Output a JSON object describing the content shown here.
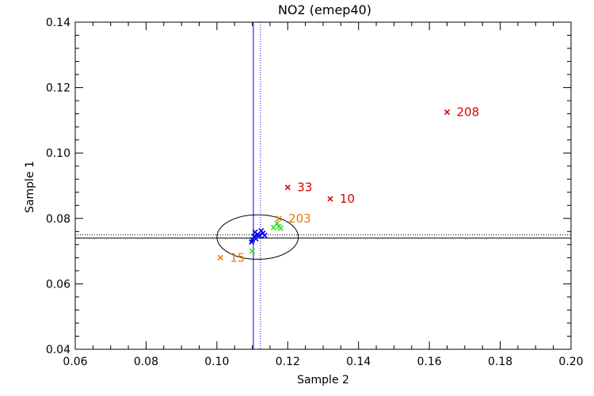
{
  "chart_data": {
    "type": "scatter",
    "title": "NO2 (emep40)",
    "xlabel": "Sample 2",
    "ylabel": "Sample 1",
    "xlim": [
      0.06,
      0.2
    ],
    "ylim": [
      0.04,
      0.14
    ],
    "x_ticks": [
      "0.06",
      "0.08",
      "0.10",
      "0.12",
      "0.14",
      "0.16",
      "0.18",
      "0.20"
    ],
    "y_ticks": [
      "0.04",
      "0.06",
      "0.08",
      "0.10",
      "0.12",
      "0.14"
    ],
    "grid": false,
    "colors": {
      "red": "#dd0000",
      "orange": "#ee7700",
      "green": "#33dd33",
      "blue": "#0000ee",
      "frame": "#000000"
    },
    "series": [
      {
        "color": "red",
        "points": [
          {
            "x": 0.165,
            "y": 0.1125,
            "label": "208"
          },
          {
            "x": 0.12,
            "y": 0.0895,
            "label": "33"
          },
          {
            "x": 0.132,
            "y": 0.086,
            "label": "10"
          }
        ]
      },
      {
        "color": "orange",
        "points": [
          {
            "x": 0.1175,
            "y": 0.08,
            "label": "203"
          },
          {
            "x": 0.101,
            "y": 0.068,
            "label": "15"
          }
        ]
      },
      {
        "color": "green",
        "points": [
          {
            "x": 0.1175,
            "y": 0.0775
          },
          {
            "x": 0.116,
            "y": 0.0772
          },
          {
            "x": 0.118,
            "y": 0.077
          },
          {
            "x": 0.117,
            "y": 0.0785
          },
          {
            "x": 0.11,
            "y": 0.07
          }
        ]
      },
      {
        "color": "blue",
        "points": [
          {
            "x": 0.11,
            "y": 0.0735
          },
          {
            "x": 0.1105,
            "y": 0.0745
          },
          {
            "x": 0.111,
            "y": 0.0738
          },
          {
            "x": 0.1115,
            "y": 0.075
          },
          {
            "x": 0.112,
            "y": 0.0748
          },
          {
            "x": 0.1125,
            "y": 0.0762
          },
          {
            "x": 0.113,
            "y": 0.0755
          },
          {
            "x": 0.1135,
            "y": 0.0748
          },
          {
            "x": 0.1098,
            "y": 0.0728
          },
          {
            "x": 0.1108,
            "y": 0.0758
          }
        ]
      }
    ],
    "reference_lines": {
      "vertical": [
        {
          "x": 0.1103,
          "color": "blue",
          "style": "solid"
        },
        {
          "x": 0.1123,
          "color": "blue",
          "style": "dotted"
        }
      ],
      "horizontal": [
        {
          "y": 0.074,
          "color": "frame",
          "style": "solid"
        },
        {
          "y": 0.075,
          "color": "frame",
          "style": "dotted"
        }
      ]
    },
    "ellipse": {
      "cx": 0.1115,
      "cy": 0.0743,
      "rx": 0.0115,
      "ry": 0.0068,
      "color": "frame"
    }
  }
}
